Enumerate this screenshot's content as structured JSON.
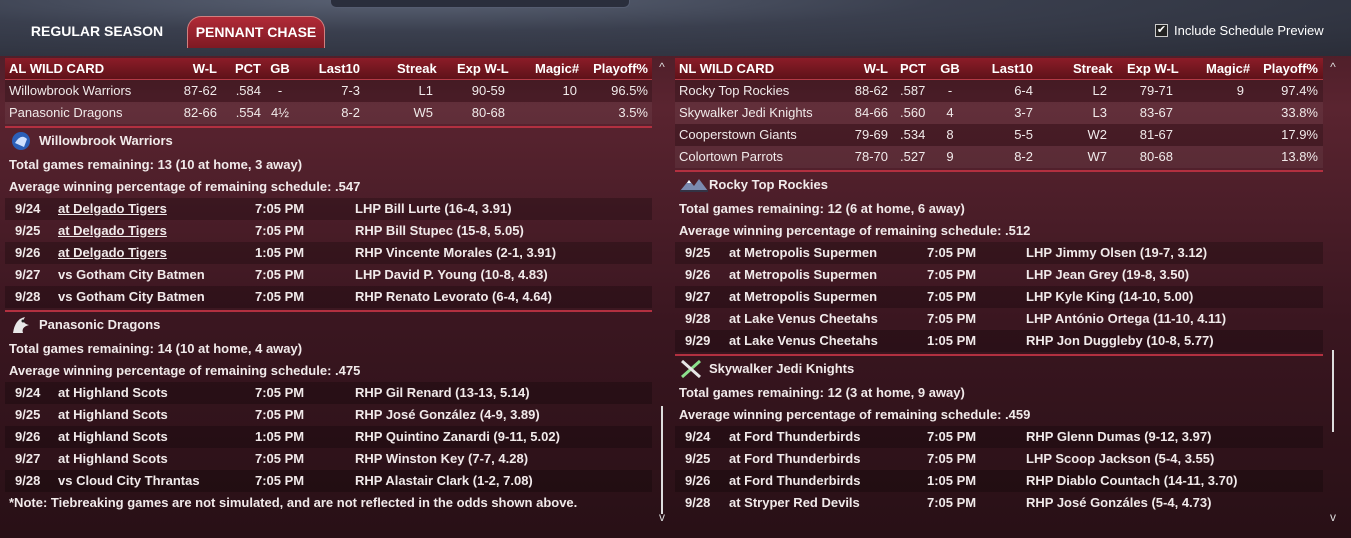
{
  "tabs": [
    {
      "label": "REGULAR SEASON"
    },
    {
      "label": "PENNANT CHASE"
    }
  ],
  "preview": {
    "label": "Include Schedule Preview",
    "checked": true,
    "mark": "✔"
  },
  "headers": {
    "wl": "W-L",
    "pct": "PCT",
    "gb": "GB",
    "last10": "Last10",
    "streak": "Streak",
    "exp": "Exp W-L",
    "magic": "Magic#",
    "playoff": "Playoff%"
  },
  "scroll": {
    "up": "^",
    "down": "v"
  },
  "al": {
    "title": "AL  WILD CARD",
    "standings": [
      {
        "team": "Willowbrook Warriors",
        "wl": "87-62",
        "pct": ".584",
        "gb": "-",
        "last10": "7-3",
        "streak": "L1",
        "exp": "90-59",
        "magic": "10",
        "playoff": "96.5%"
      },
      {
        "team": "Panasonic Dragons",
        "wl": "82-66",
        "pct": ".554",
        "gb": "4½",
        "last10": "8-2",
        "streak": "W5",
        "exp": "80-68",
        "magic": "",
        "playoff": "3.5%"
      }
    ],
    "teams": [
      {
        "name": "Willowbrook Warriors",
        "logo": "warrior-logo",
        "remaining": "Total games remaining: 13 (10 at home, 3 away)",
        "avg": "Average winning percentage of remaining schedule: .547",
        "games": [
          {
            "date": "9/24",
            "opp": "at Delgado Tigers",
            "time": "7:05 PM",
            "pitcher": "LHP Bill Lurte (16-4, 3.91)",
            "link": true
          },
          {
            "date": "9/25",
            "opp": "at Delgado Tigers",
            "time": "7:05 PM",
            "pitcher": "RHP Bill Stupec (15-8, 5.05)",
            "link": true
          },
          {
            "date": "9/26",
            "opp": "at Delgado Tigers",
            "time": "1:05 PM",
            "pitcher": "RHP Vincente Morales (2-1, 3.91)",
            "link": true
          },
          {
            "date": "9/27",
            "opp": "vs Gotham City Batmen",
            "time": "7:05 PM",
            "pitcher": "LHP David P. Young (10-8, 4.83)",
            "link": false
          },
          {
            "date": "9/28",
            "opp": "vs Gotham City Batmen",
            "time": "7:05 PM",
            "pitcher": "RHP Renato Levorato (6-4, 4.64)",
            "link": false
          }
        ]
      },
      {
        "name": "Panasonic Dragons",
        "logo": "dragon-logo",
        "remaining": "Total games remaining: 14 (10 at home, 4 away)",
        "avg": "Average winning percentage of remaining schedule: .475",
        "games": [
          {
            "date": "9/24",
            "opp": "at Highland Scots",
            "time": "7:05 PM",
            "pitcher": "RHP Gil Renard (13-13, 5.14)",
            "link": false
          },
          {
            "date": "9/25",
            "opp": "at Highland Scots",
            "time": "7:05 PM",
            "pitcher": "RHP José González (4-9, 3.89)",
            "link": false
          },
          {
            "date": "9/26",
            "opp": "at Highland Scots",
            "time": "1:05 PM",
            "pitcher": "RHP Quintino Zanardi (9-11, 5.02)",
            "link": false
          },
          {
            "date": "9/27",
            "opp": "at Highland Scots",
            "time": "7:05 PM",
            "pitcher": "RHP Winston Key (7-7, 4.28)",
            "link": false
          },
          {
            "date": "9/28",
            "opp": "vs Cloud City Thrantas",
            "time": "7:05 PM",
            "pitcher": "RHP Alastair Clark (1-2, 7.08)",
            "link": false
          }
        ]
      }
    ],
    "note": "*Note: Tiebreaking games are not simulated, and are not reflected in the odds shown above."
  },
  "nl": {
    "title": "NL  WILD CARD",
    "standings": [
      {
        "team": "Rocky Top Rockies",
        "wl": "88-62",
        "pct": ".587",
        "gb": "-",
        "last10": "6-4",
        "streak": "L2",
        "exp": "79-71",
        "magic": "9",
        "playoff": "97.4%"
      },
      {
        "team": "Skywalker Jedi Knights",
        "wl": "84-66",
        "pct": ".560",
        "gb": "4",
        "last10": "3-7",
        "streak": "L3",
        "exp": "83-67",
        "magic": "",
        "playoff": "33.8%"
      },
      {
        "team": "Cooperstown Giants",
        "wl": "79-69",
        "pct": ".534",
        "gb": "8",
        "last10": "5-5",
        "streak": "W2",
        "exp": "81-67",
        "magic": "",
        "playoff": "17.9%"
      },
      {
        "team": "Colortown Parrots",
        "wl": "78-70",
        "pct": ".527",
        "gb": "9",
        "last10": "8-2",
        "streak": "W7",
        "exp": "80-68",
        "magic": "",
        "playoff": "13.8%"
      }
    ],
    "teams": [
      {
        "name": "Rocky Top Rockies",
        "logo": "mountain-logo",
        "remaining": "Total games remaining: 12 (6 at home, 6 away)",
        "avg": "Average winning percentage of remaining schedule: .512",
        "games": [
          {
            "date": "9/25",
            "opp": "at Metropolis Supermen",
            "time": "7:05 PM",
            "pitcher": "LHP Jimmy Olsen (19-7, 3.12)",
            "link": false
          },
          {
            "date": "9/26",
            "opp": "at Metropolis Supermen",
            "time": "7:05 PM",
            "pitcher": "LHP Jean Grey (19-8, 3.50)",
            "link": false
          },
          {
            "date": "9/27",
            "opp": "at Metropolis Supermen",
            "time": "7:05 PM",
            "pitcher": "LHP Kyle King (14-10, 5.00)",
            "link": false
          },
          {
            "date": "9/28",
            "opp": "at Lake Venus Cheetahs",
            "time": "7:05 PM",
            "pitcher": "LHP António Ortega (11-10, 4.11)",
            "link": false
          },
          {
            "date": "9/29",
            "opp": "at Lake Venus Cheetahs",
            "time": "1:05 PM",
            "pitcher": "RHP Jon Duggleby (10-8, 5.77)",
            "link": false
          }
        ]
      },
      {
        "name": "Skywalker Jedi Knights",
        "logo": "sabers-logo",
        "remaining": "Total games remaining: 12 (3 at home, 9 away)",
        "avg": "Average winning percentage of remaining schedule: .459",
        "games": [
          {
            "date": "9/24",
            "opp": "at Ford Thunderbirds",
            "time": "7:05 PM",
            "pitcher": "RHP Glenn Dumas (9-12, 3.97)",
            "link": false
          },
          {
            "date": "9/25",
            "opp": "at Ford Thunderbirds",
            "time": "7:05 PM",
            "pitcher": "LHP Scoop Jackson (5-4, 3.55)",
            "link": false
          },
          {
            "date": "9/26",
            "opp": "at Ford Thunderbirds",
            "time": "1:05 PM",
            "pitcher": "RHP Diablo Countach (14-11, 3.70)",
            "link": false
          },
          {
            "date": "9/28",
            "opp": "at Stryper Red Devils",
            "time": "7:05 PM",
            "pitcher": "RHP José Gonzáles (5-4, 4.73)",
            "link": false
          }
        ]
      }
    ]
  }
}
